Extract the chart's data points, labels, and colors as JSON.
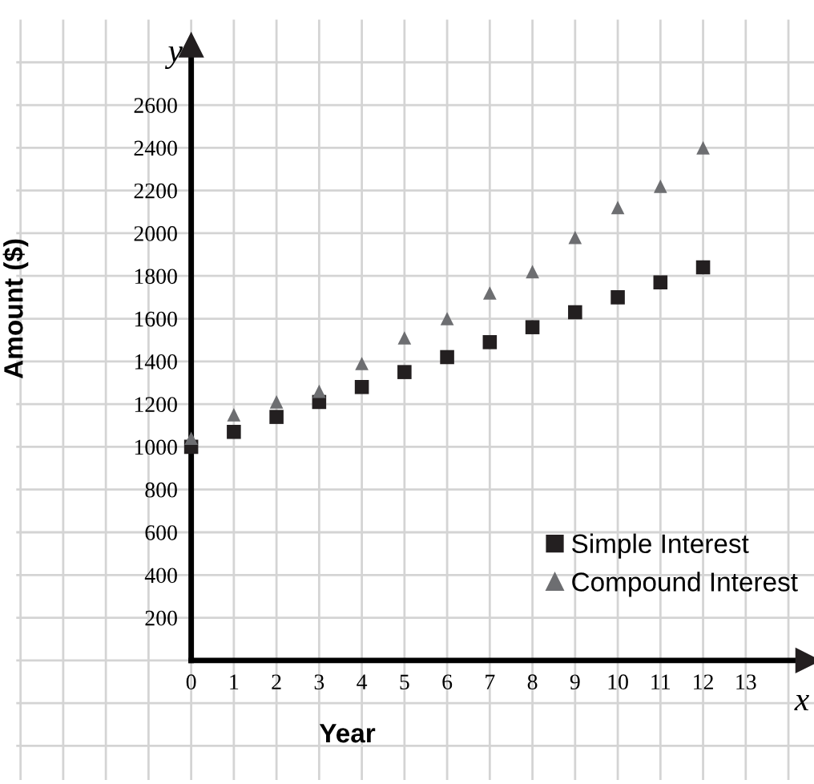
{
  "chart_data": {
    "type": "scatter",
    "xlabel": "Year",
    "ylabel": "Amount ($)",
    "x": [
      0,
      1,
      2,
      3,
      4,
      5,
      6,
      7,
      8,
      9,
      10,
      11,
      12
    ],
    "series": [
      {
        "name": "Simple Interest",
        "color": "#231f20",
        "marker": "square",
        "values": [
          1000,
          1070,
          1140,
          1210,
          1280,
          1350,
          1420,
          1490,
          1560,
          1630,
          1700,
          1770,
          1840
        ]
      },
      {
        "name": "Compound Interest",
        "color": "#6d6e71",
        "marker": "triangle",
        "values": [
          1040,
          1150,
          1210,
          1260,
          1390,
          1510,
          1600,
          1720,
          1820,
          1980,
          2120,
          2220,
          2400
        ]
      }
    ],
    "xlim": [
      -4.1,
      14.6
    ],
    "ylim": [
      -560,
      3000
    ],
    "xticks": [
      {
        "value": -4,
        "label": null
      },
      {
        "value": -3,
        "label": null
      },
      {
        "value": -2,
        "label": null
      },
      {
        "value": -1,
        "label": null
      },
      0,
      1,
      2,
      3,
      4,
      5,
      6,
      7,
      8,
      9,
      10,
      11,
      12,
      13,
      {
        "value": 14,
        "label": null
      }
    ],
    "yticks": [
      {
        "value": -400,
        "label": null
      },
      {
        "value": -200,
        "label": null
      },
      {
        "value": 0,
        "label": null
      },
      200,
      400,
      600,
      800,
      1000,
      1200,
      1400,
      1600,
      1800,
      2000,
      2200,
      2400,
      2600,
      {
        "value": 2800,
        "label": null
      }
    ],
    "annotations": [
      "x",
      "y"
    ],
    "grid": true,
    "legend": "bottom right"
  }
}
